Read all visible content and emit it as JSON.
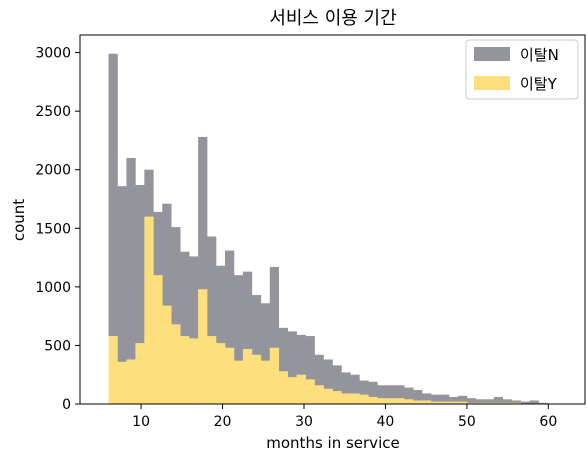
{
  "chart_data": {
    "type": "bar",
    "title": "서비스 이용 기간",
    "xlabel": "months in service",
    "ylabel": "count",
    "xlim": [
      2.5,
      64.5
    ],
    "ylim": [
      0,
      3150
    ],
    "xticks": [
      10,
      20,
      30,
      40,
      50,
      60
    ],
    "yticks": [
      0,
      500,
      1000,
      1500,
      2000,
      2500,
      3000
    ],
    "bin_start": 6,
    "bin_width": 1.1,
    "legend_position": "top-right",
    "series": [
      {
        "name": "이탈N",
        "color": "#94949c",
        "values": [
          2990,
          1860,
          2100,
          1870,
          2000,
          1640,
          1710,
          1510,
          1300,
          1260,
          2280,
          1430,
          1180,
          1310,
          1100,
          1130,
          930,
          860,
          1170,
          650,
          620,
          590,
          580,
          420,
          380,
          330,
          270,
          250,
          200,
          190,
          160,
          160,
          160,
          140,
          120,
          90,
          80,
          80,
          60,
          70,
          50,
          40,
          40,
          60,
          40,
          30,
          20,
          30,
          10
        ]
      },
      {
        "name": "이탈Y",
        "color": "#fde07d",
        "values": [
          580,
          360,
          380,
          520,
          1600,
          1100,
          840,
          680,
          580,
          560,
          980,
          580,
          520,
          480,
          370,
          470,
          420,
          370,
          480,
          280,
          230,
          250,
          210,
          160,
          130,
          110,
          90,
          90,
          80,
          60,
          50,
          50,
          50,
          40,
          30,
          30,
          20,
          20,
          20,
          20,
          10,
          10,
          10,
          10,
          10,
          10,
          5,
          5,
          5
        ]
      }
    ]
  }
}
